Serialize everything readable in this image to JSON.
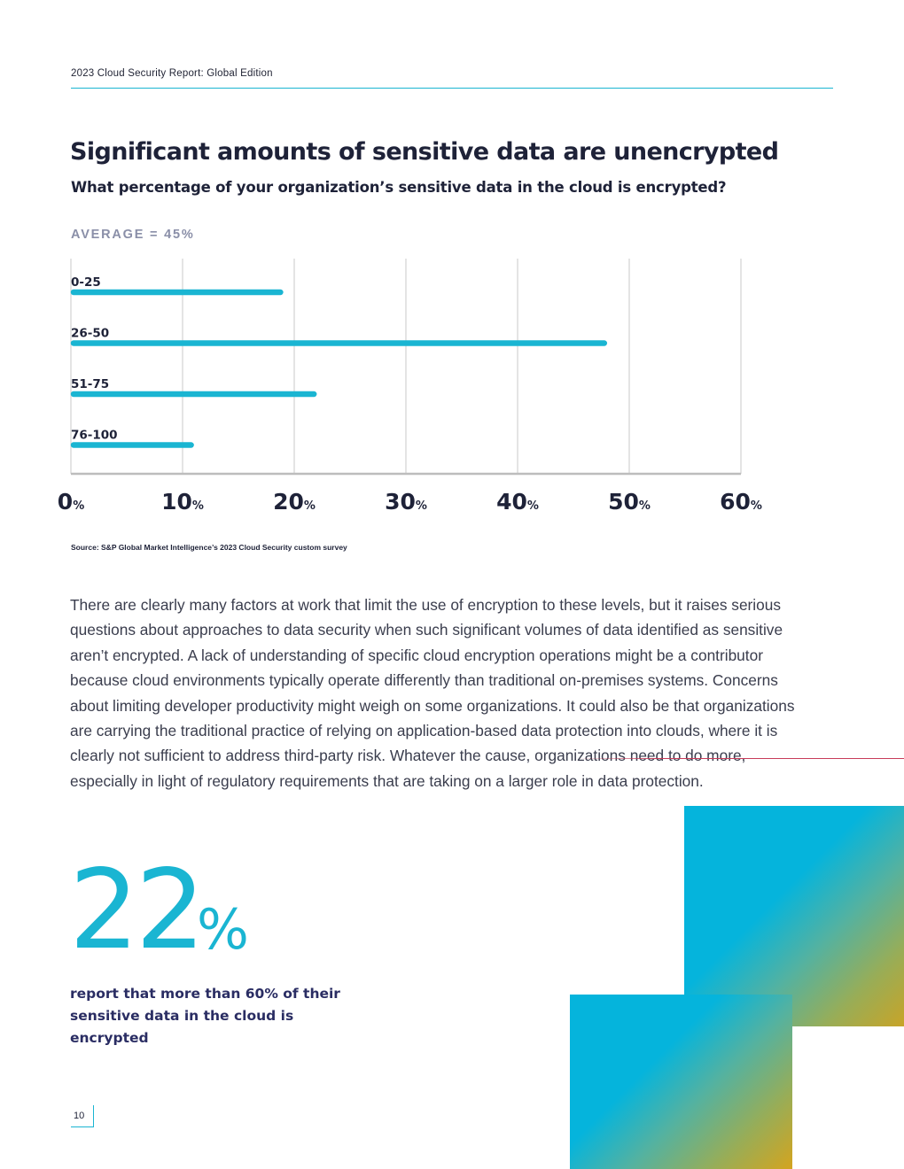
{
  "header": {
    "report_title": "2023 Cloud Security Report: Global Edition"
  },
  "section": {
    "title": "Significant amounts of sensitive data are unencrypted",
    "question": "What percentage of your organization’s sensitive data in the cloud is encrypted?",
    "average_label": "AVERAGE = 45%"
  },
  "chart_data": {
    "type": "bar",
    "orientation": "horizontal",
    "title": "What percentage of your organization’s sensitive data in the cloud is encrypted?",
    "annotation": "AVERAGE = 45%",
    "categories": [
      "0-25",
      "26-50",
      "51-75",
      "76-100"
    ],
    "values": [
      19,
      48,
      22,
      11
    ],
    "xlim": [
      0,
      60
    ],
    "x_ticks": [
      0,
      10,
      20,
      30,
      40,
      50,
      60
    ],
    "x_tick_suffix": "%",
    "grid": true,
    "bar_color": "#1ab5d2"
  },
  "source": "Source: S&P Global Market Intelligence’s 2023 Cloud Security custom survey",
  "body_text": "There are clearly many factors at work that limit the use of encryption to these levels, but it raises serious questions about approaches to data security when such significant volumes of data identified as sensitive aren’t encrypted. A lack of understanding of specific cloud encryption operations might be a contributor because cloud environments typically operate differently than traditional on-premises systems. Concerns about limiting developer productivity might weigh on some organizations. It could also be that organizations are carrying the traditional practice of relying on application-based data protection into clouds, where it is clearly not sufficient to address third-party risk. Whatever the cause, organizations need to do more, especially in light of regulatory requirements that are taking on a larger role in data protection.",
  "stat": {
    "number": "22",
    "unit": "%",
    "caption": "report that more than 60% of their sensitive data in the cloud is encrypted"
  },
  "page_number": "10",
  "colors": {
    "accent": "#1ab5d2",
    "heading": "#1e2238",
    "caption": "#2a2d63",
    "muted_label": "#8a8fa8"
  }
}
